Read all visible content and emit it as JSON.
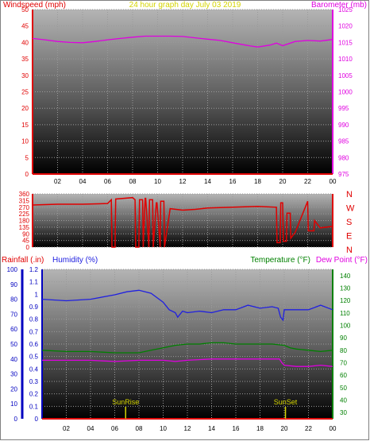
{
  "header": {
    "left": "Windspeed (mph)",
    "center": "24 hour graph day   July 03 2019",
    "right": "Barometer (mb)"
  },
  "colors": {
    "windspeed": "#e00000",
    "barometer": "#e000e0",
    "direction": "#e00000",
    "rainfall": "#e00000",
    "humidity": "#2020e0",
    "temperature": "#008000",
    "dewpoint": "#e000e0",
    "axis_left_panel3": "#0000c0",
    "axis_right_panel3": "#008000",
    "title": "#d4d400",
    "sun": "#d4d400"
  },
  "chart_data": [
    {
      "type": "line",
      "title": "24 hour graph day   July 03 2019",
      "x_ticks": [
        "02",
        "04",
        "06",
        "08",
        "10",
        "12",
        "14",
        "16",
        "18",
        "20",
        "22",
        "00"
      ],
      "y_left": {
        "label": "Windspeed (mph)",
        "ticks": [
          0,
          5,
          10,
          15,
          20,
          25,
          30,
          35,
          40,
          45,
          50
        ],
        "ylim": [
          0,
          50
        ]
      },
      "y_right": {
        "label": "Barometer (mb)",
        "ticks": [
          975,
          980,
          985,
          990,
          995,
          1000,
          1005,
          1010,
          1015,
          1020,
          1025
        ],
        "ylim": [
          975,
          1025
        ]
      },
      "series": [
        {
          "name": "Windspeed (mph)",
          "axis": "left",
          "x": [
            0,
            24
          ],
          "values": [
            0,
            0
          ]
        },
        {
          "name": "Barometer (mb)",
          "axis": "right",
          "x": [
            0,
            1,
            2,
            3,
            4,
            5,
            6,
            7,
            8,
            9,
            10,
            11,
            12,
            13,
            14,
            15,
            16,
            17,
            17.5,
            18,
            19,
            19.5,
            20,
            21,
            22,
            23,
            24
          ],
          "values": [
            1016.2,
            1015.8,
            1015.3,
            1015.0,
            1014.9,
            1015.3,
            1015.8,
            1016.2,
            1016.6,
            1016.9,
            1016.9,
            1016.9,
            1016.8,
            1016.4,
            1016.0,
            1015.6,
            1014.9,
            1014.2,
            1013.9,
            1013.6,
            1014.2,
            1014.8,
            1014.0,
            1015.3,
            1015.6,
            1015.4,
            1015.9
          ]
        }
      ]
    },
    {
      "type": "line",
      "y_left": {
        "ticks": [
          0,
          45,
          90,
          135,
          180,
          225,
          270,
          315,
          360
        ],
        "ylim": [
          0,
          360
        ]
      },
      "y_right_labels": [
        "N",
        "W",
        "S",
        "E",
        "N"
      ],
      "series": [
        {
          "name": "Wind direction",
          "x": [
            0,
            2,
            4,
            6,
            6.3,
            6.35,
            6.6,
            6.65,
            8,
            8.2,
            8.25,
            8.5,
            8.55,
            8.8,
            8.85,
            9,
            9.05,
            9.3,
            9.35,
            9.6,
            9.65,
            9.9,
            9.95,
            10.2,
            10.25,
            10.5,
            10.55,
            11,
            12,
            13,
            14,
            16,
            18,
            19.5,
            19.55,
            19.8,
            19.85,
            20,
            20.05,
            20.3,
            20.35,
            20.6,
            20.65,
            21,
            22,
            22.05,
            22.5,
            22.55,
            23,
            24
          ],
          "values": [
            285,
            290,
            290,
            295,
            320,
            0,
            0,
            325,
            335,
            320,
            0,
            0,
            320,
            320,
            0,
            330,
            330,
            0,
            320,
            320,
            0,
            300,
            300,
            0,
            310,
            310,
            0,
            260,
            250,
            255,
            265,
            270,
            275,
            270,
            30,
            30,
            300,
            300,
            40,
            40,
            230,
            230,
            60,
            100,
            310,
            110,
            110,
            180,
            130,
            140
          ]
        }
      ]
    },
    {
      "type": "line",
      "x_ticks": [
        "02",
        "04",
        "06",
        "08",
        "10",
        "12",
        "14",
        "16",
        "18",
        "20",
        "22",
        "00"
      ],
      "legend": [
        "Rainfall (.in)",
        "Humidity (%)",
        "Temperature (°F)",
        "Dew Point (°F)"
      ],
      "y_rain": {
        "label": "Rainfall (.in)",
        "ticks": [
          0,
          0.1,
          0.2,
          0.3,
          0.4,
          0.5,
          0.6,
          0.7,
          0.8,
          0.9,
          1,
          1.1,
          1.2
        ],
        "ylim": [
          0,
          1.2
        ]
      },
      "y_humidity": {
        "label": "Humidity (%)",
        "ticks": [
          0,
          10,
          20,
          30,
          40,
          50,
          60,
          70,
          80,
          90,
          100
        ],
        "ylim": [
          0,
          100
        ]
      },
      "y_temp": {
        "label": "Temperature (°F)",
        "ticks": [
          30,
          40,
          50,
          60,
          70,
          80,
          90,
          100,
          110,
          120,
          130,
          140
        ],
        "ylim": [
          25,
          145
        ]
      },
      "annotations": [
        {
          "label": "SunRise",
          "x": 6.9
        },
        {
          "label": "SunSet",
          "x": 20.1
        }
      ],
      "series": [
        {
          "name": "Rainfall (.in)",
          "axis": "rain",
          "x": [
            0,
            24
          ],
          "values": [
            0,
            0
          ]
        },
        {
          "name": "Humidity (%)",
          "axis": "humidity",
          "x": [
            0,
            2,
            4,
            6,
            7,
            8,
            9,
            10,
            10.5,
            11,
            11.2,
            11.6,
            12,
            13,
            14,
            15,
            16,
            17,
            18,
            19,
            19.5,
            19.7,
            19.9,
            20,
            21,
            22,
            23,
            24
          ],
          "values": [
            80,
            79,
            80,
            83,
            85,
            86,
            84,
            78,
            73,
            71,
            68,
            72,
            71,
            72,
            71,
            73,
            73,
            76,
            74,
            75,
            74,
            68,
            66,
            73,
            73,
            73,
            76,
            73
          ]
        },
        {
          "name": "Temperature (°F)",
          "axis": "temp",
          "x": [
            0,
            2,
            4,
            6,
            7,
            8,
            9,
            10,
            11,
            12,
            13,
            14,
            15,
            16,
            17,
            18,
            19,
            20,
            20.5,
            21,
            22,
            23,
            24
          ],
          "values": [
            80,
            79,
            79,
            78,
            78,
            78,
            80,
            82,
            84,
            85,
            85,
            86,
            86,
            85,
            85,
            85,
            85,
            84,
            82,
            81,
            80,
            79,
            80
          ]
        },
        {
          "name": "Dew Point (°F)",
          "axis": "temp",
          "x": [
            0,
            2,
            4,
            6,
            8,
            10,
            11,
            12,
            14,
            16,
            18,
            19,
            19.6,
            19.8,
            20,
            21,
            22,
            23,
            24
          ],
          "values": [
            72,
            72,
            72,
            71,
            72,
            72,
            71,
            72,
            73,
            73,
            73,
            73,
            73,
            70,
            68,
            67,
            67,
            68,
            67
          ]
        }
      ]
    }
  ]
}
